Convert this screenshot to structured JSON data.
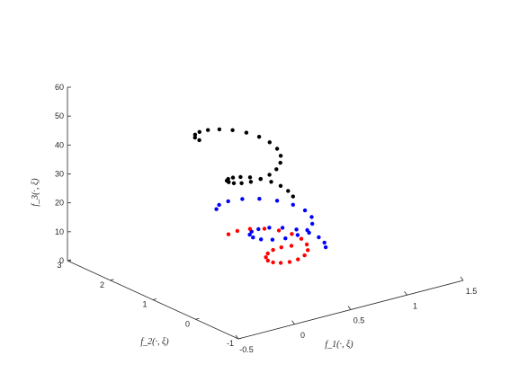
{
  "chart_data": {
    "type": "scatter3d",
    "title": "",
    "xlabel": "f_1(·, ξ)",
    "ylabel": "f_2(·, ξ)",
    "zlabel": "f_3(·, ξ)",
    "xlim": [
      -0.5,
      1.5
    ],
    "ylim": [
      -1,
      3
    ],
    "zlim": [
      0,
      60
    ],
    "x_ticks": [
      "-0.5",
      "0",
      "0.5",
      "1",
      "1.5"
    ],
    "y_ticks": [
      "-1",
      "0",
      "1",
      "2",
      "3"
    ],
    "z_ticks": [
      "0",
      "10",
      "20",
      "30",
      "40",
      "50",
      "60"
    ],
    "grid": false,
    "legend": "none",
    "series": [
      {
        "color": "#000000",
        "points": [
          {
            "u": 0.0,
            "v": 3.0,
            "f3": 50
          },
          {
            "u": 0.0,
            "v": 2.9,
            "f3": 48.5
          },
          {
            "u": 0.0,
            "v": 2.8,
            "f3": 47
          },
          {
            "u": 0.0,
            "v": 2.7,
            "f3": 45.5
          },
          {
            "u": 0.0,
            "v": 2.6,
            "f3": 44
          },
          {
            "u": 0.0,
            "v": 2.5,
            "f3": 42.5
          },
          {
            "u": 0.0,
            "v": 2.4,
            "f3": 41
          },
          {
            "u": 0.0,
            "v": 2.3,
            "f3": 39.5
          },
          {
            "u": 0.0,
            "v": 2.2,
            "f3": 38
          },
          {
            "u": 0.0,
            "v": 2.1,
            "f3": 36.5
          },
          {
            "u": 0.0,
            "v": 2.0,
            "f3": 35
          },
          {
            "u": 0.0,
            "v": 1.9,
            "f3": 33.5
          },
          {
            "u": 0.0,
            "v": 1.8,
            "f3": 32
          },
          {
            "u": 0.0,
            "v": 1.7,
            "f3": 30.5
          },
          {
            "u": 0.0,
            "v": 1.6,
            "f3": 29
          },
          {
            "u": 0.0,
            "v": 1.5,
            "f3": 27.5
          },
          {
            "u": 0.0,
            "v": 1.4,
            "f3": 26
          },
          {
            "u": 0.0,
            "v": 1.3,
            "f3": 24.5
          },
          {
            "u": 0.0,
            "v": 1.2,
            "f3": 23
          },
          {
            "u": 0.0,
            "v": 1.1,
            "f3": 21.5
          },
          {
            "u": 0.0,
            "v": 1.0,
            "f3": 20
          },
          {
            "u": 0.0,
            "v": 0.9,
            "f3": 18.5
          },
          {
            "u": 0.0,
            "v": 0.8,
            "f3": 17
          },
          {
            "u": 0.0,
            "v": 0.7,
            "f3": 15.5
          },
          {
            "u": 0.0,
            "v": 0.6,
            "f3": 14
          },
          {
            "u": 0.0,
            "v": 0.5,
            "f3": 12.5
          },
          {
            "u": 0.0,
            "v": 0.4,
            "f3": 11
          },
          {
            "u": 0.0,
            "v": 0.3,
            "f3": 9.5
          },
          {
            "u": 0.0,
            "v": 0.2,
            "f3": 8
          },
          {
            "u": 0.0,
            "v": 0.1,
            "f3": 6.5
          }
        ]
      },
      {
        "color": "#0000ff",
        "points": [
          {
            "u": 0.0,
            "v": 2.0,
            "f3": 25
          },
          {
            "u": 0.0,
            "v": 1.9,
            "f3": 24
          },
          {
            "u": 0.0,
            "v": 1.8,
            "f3": 23
          },
          {
            "u": 0.0,
            "v": 1.7,
            "f3": 22
          },
          {
            "u": 0.0,
            "v": 1.6,
            "f3": 21
          },
          {
            "u": 0.0,
            "v": 1.5,
            "f3": 20
          },
          {
            "u": 0.0,
            "v": 1.4,
            "f3": 19
          },
          {
            "u": 0.0,
            "v": 1.3,
            "f3": 18
          },
          {
            "u": 0.0,
            "v": 1.2,
            "f3": 17
          },
          {
            "u": 0.0,
            "v": 1.1,
            "f3": 16
          },
          {
            "u": 0.0,
            "v": 1.0,
            "f3": 15
          },
          {
            "u": 0.0,
            "v": 0.9,
            "f3": 14
          },
          {
            "u": 0.0,
            "v": 0.8,
            "f3": 13
          },
          {
            "u": 0.0,
            "v": 0.7,
            "f3": 12
          },
          {
            "u": 0.0,
            "v": 0.6,
            "f3": 11
          },
          {
            "u": 0.0,
            "v": 0.5,
            "f3": 10
          },
          {
            "u": 0.0,
            "v": 0.4,
            "f3": 9
          },
          {
            "u": 0.0,
            "v": 0.3,
            "f3": 8
          },
          {
            "u": 0.0,
            "v": 0.2,
            "f3": 7
          },
          {
            "u": 0.0,
            "v": 0.1,
            "f3": 6
          },
          {
            "u": 0.0,
            "v": 0.0,
            "f3": 5
          },
          {
            "u": 0.0,
            "v": -0.1,
            "f3": 4
          },
          {
            "u": 0.0,
            "v": -0.2,
            "f3": 3
          },
          {
            "u": 0.0,
            "v": -0.3,
            "f3": 2
          },
          {
            "u": 0.0,
            "v": -0.4,
            "f3": 1
          },
          {
            "u": 0.0,
            "v": -0.5,
            "f3": 0.5
          }
        ]
      },
      {
        "color": "#ff0000",
        "points": [
          {
            "u": 0.0,
            "v": 1.0,
            "f3": 10
          },
          {
            "u": 0.0,
            "v": 0.93,
            "f3": 9.3
          },
          {
            "u": 0.0,
            "v": 0.86,
            "f3": 8.6
          },
          {
            "u": 0.0,
            "v": 0.79,
            "f3": 7.9
          },
          {
            "u": 0.0,
            "v": 0.72,
            "f3": 7.2
          },
          {
            "u": 0.0,
            "v": 0.65,
            "f3": 6.5
          },
          {
            "u": 0.0,
            "v": 0.58,
            "f3": 5.8
          },
          {
            "u": 0.0,
            "v": 0.51,
            "f3": 5.1
          },
          {
            "u": 0.0,
            "v": 0.44,
            "f3": 4.4
          },
          {
            "u": 0.0,
            "v": 0.37,
            "f3": 3.7
          },
          {
            "u": 0.0,
            "v": 0.3,
            "f3": 3.0
          },
          {
            "u": 0.0,
            "v": 0.23,
            "f3": 2.3
          },
          {
            "u": 0.0,
            "v": 0.16,
            "f3": 1.6
          },
          {
            "u": 0.0,
            "v": 0.09,
            "f3": 0.9
          },
          {
            "u": 0.0,
            "v": 0.02,
            "f3": 0.2
          },
          {
            "u": 0.0,
            "v": -0.05,
            "f3": 0
          },
          {
            "u": 0.0,
            "v": -0.12,
            "f3": 0
          },
          {
            "u": 0.0,
            "v": -0.19,
            "f3": 0
          },
          {
            "u": 0.0,
            "v": -0.26,
            "f3": 0
          },
          {
            "u": 0.0,
            "v": -0.33,
            "f3": 0
          }
        ]
      }
    ]
  }
}
